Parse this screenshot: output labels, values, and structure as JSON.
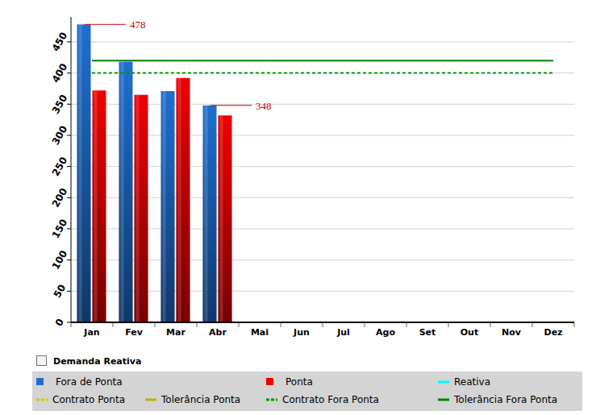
{
  "chart_data": {
    "type": "bar",
    "categories": [
      "Jan",
      "Fev",
      "Mar",
      "Abr",
      "Mai",
      "Jun",
      "Jul",
      "Ago",
      "Set",
      "Out",
      "Nov",
      "Dez"
    ],
    "series": [
      {
        "name": "Fora de Ponta",
        "color": "#1f6fd0",
        "type": "bar",
        "values": [
          478,
          418,
          371,
          348,
          null,
          null,
          null,
          null,
          null,
          null,
          null,
          null
        ]
      },
      {
        "name": "Ponta",
        "color": "#ee0000",
        "type": "bar",
        "values": [
          372,
          365,
          392,
          332,
          null,
          null,
          null,
          null,
          null,
          null,
          null,
          null
        ]
      },
      {
        "name": "Reativa",
        "color": "#00ffff",
        "type": "line",
        "line_style": "solid",
        "values": [
          null,
          null,
          null,
          null,
          null,
          null,
          null,
          null,
          null,
          null,
          null,
          null
        ]
      },
      {
        "name": "Contrato Ponta",
        "color": "#cccc00",
        "type": "line",
        "line_style": "dashed",
        "values": [
          null,
          null,
          null,
          null,
          null,
          null,
          null,
          null,
          null,
          null,
          null,
          null
        ]
      },
      {
        "name": "Tolerância Ponta",
        "color": "#b5b500",
        "type": "line",
        "line_style": "solid",
        "values": [
          null,
          null,
          null,
          null,
          null,
          null,
          null,
          null,
          null,
          null,
          null,
          null
        ]
      },
      {
        "name": "Contrato Fora Ponta",
        "color": "#009900",
        "type": "line",
        "line_style": "dashed",
        "values": [
          400,
          400,
          400,
          400,
          400,
          400,
          400,
          400,
          400,
          400,
          400,
          400
        ]
      },
      {
        "name": "Tolerância Fora Ponta",
        "color": "#008000",
        "type": "line",
        "line_style": "solid",
        "values": [
          420,
          420,
          420,
          420,
          420,
          420,
          420,
          420,
          420,
          420,
          420,
          420
        ]
      }
    ],
    "ylim": [
      0,
      490
    ],
    "yticks": [
      0,
      50,
      100,
      150,
      200,
      250,
      300,
      350,
      400,
      450
    ],
    "grid": true,
    "legend": "bottom",
    "annotations": [
      {
        "text": "478",
        "x": "Jan",
        "y": 478
      },
      {
        "text": "348",
        "x": "Abr",
        "y": 348
      }
    ],
    "checkbox": "Demanda Reativa"
  }
}
